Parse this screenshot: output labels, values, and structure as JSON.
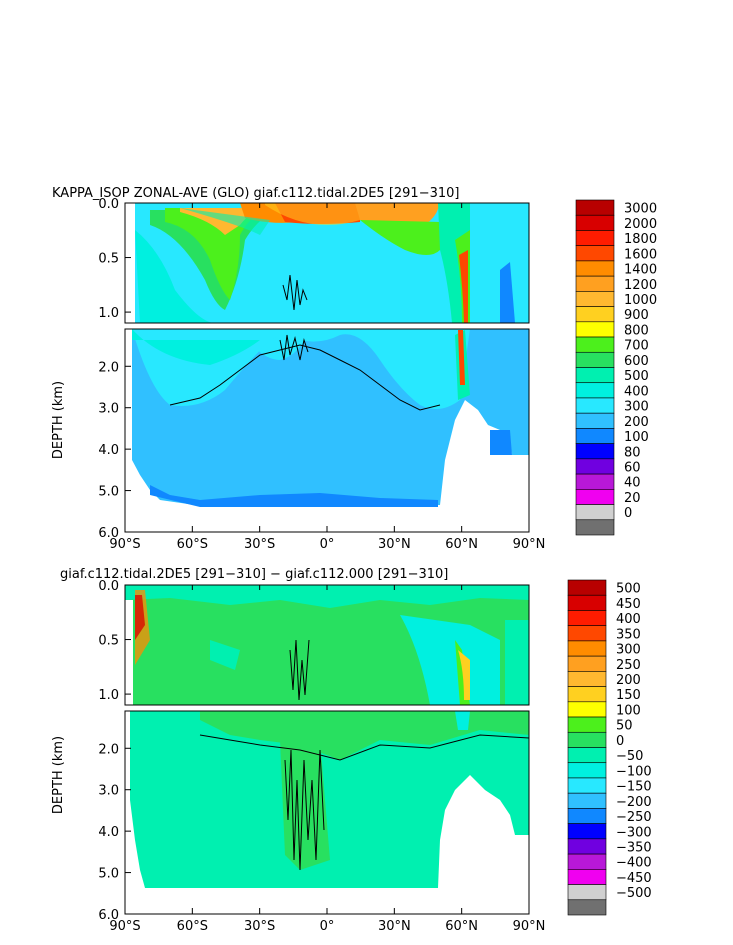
{
  "chart_data": [
    {
      "type": "heatmap",
      "title": "KAPPA_ISOP ZONAL-AVE (GLO) giaf.c112.tidal.2DE5 [291−310]",
      "xlabel": "",
      "ylabel": "DEPTH (km)",
      "x_ticks": [
        "90°S",
        "60°S",
        "30°S",
        "0°",
        "30°N",
        "60°N",
        "90°N"
      ],
      "y_ticks_upper": [
        "0.0",
        "0.5",
        "1.0"
      ],
      "y_ticks_lower": [
        "2.0",
        "3.0",
        "4.0",
        "5.0",
        "6.0"
      ],
      "xlim": [
        -90,
        90
      ],
      "ylim": [
        6.0,
        0.0
      ],
      "colorbar": {
        "labels": [
          "3000",
          "2000",
          "1800",
          "1600",
          "1400",
          "1200",
          "1000",
          "900",
          "800",
          "700",
          "600",
          "500",
          "400",
          "300",
          "200",
          "100",
          "80",
          "60",
          "40",
          "20",
          "0"
        ],
        "colors": [
          "#b80000",
          "#d80000",
          "#ff1c00",
          "#ff4800",
          "#ff8c00",
          "#ffa020",
          "#ffb830",
          "#ffd020",
          "#ffff00",
          "#4cf01c",
          "#28e060",
          "#00f0b0",
          "#00f0e0",
          "#28e8ff",
          "#30c0ff",
          "#1088ff",
          "#0000ff",
          "#7000e0",
          "#b818d8",
          "#f000f0",
          "#d0d0d0",
          "#707070"
        ]
      }
    },
    {
      "type": "heatmap",
      "title": "giaf.c112.tidal.2DE5 [291−310] − giaf.c112.000 [291−310]",
      "xlabel": "",
      "ylabel": "DEPTH (km)",
      "x_ticks": [
        "90°S",
        "60°S",
        "30°S",
        "0°",
        "30°N",
        "60°N",
        "90°N"
      ],
      "y_ticks_upper": [
        "0.0",
        "0.5",
        "1.0"
      ],
      "y_ticks_lower": [
        "2.0",
        "3.0",
        "4.0",
        "5.0",
        "6.0"
      ],
      "xlim": [
        -90,
        90
      ],
      "ylim": [
        6.0,
        0.0
      ],
      "colorbar": {
        "labels": [
          "500",
          "450",
          "400",
          "350",
          "300",
          "250",
          "200",
          "150",
          "100",
          "50",
          "0",
          "−50",
          "−100",
          "−150",
          "−200",
          "−250",
          "−300",
          "−350",
          "−400",
          "−450",
          "−500"
        ],
        "colors": [
          "#b80000",
          "#d80000",
          "#ff1c00",
          "#ff4800",
          "#ff8c00",
          "#ffa020",
          "#ffb830",
          "#ffd020",
          "#ffff00",
          "#4cf01c",
          "#28e060",
          "#00f0b0",
          "#00f0e0",
          "#28e8ff",
          "#30c0ff",
          "#1088ff",
          "#0000ff",
          "#7000e0",
          "#b818d8",
          "#f000f0",
          "#d0d0d0",
          "#707070"
        ]
      }
    }
  ]
}
